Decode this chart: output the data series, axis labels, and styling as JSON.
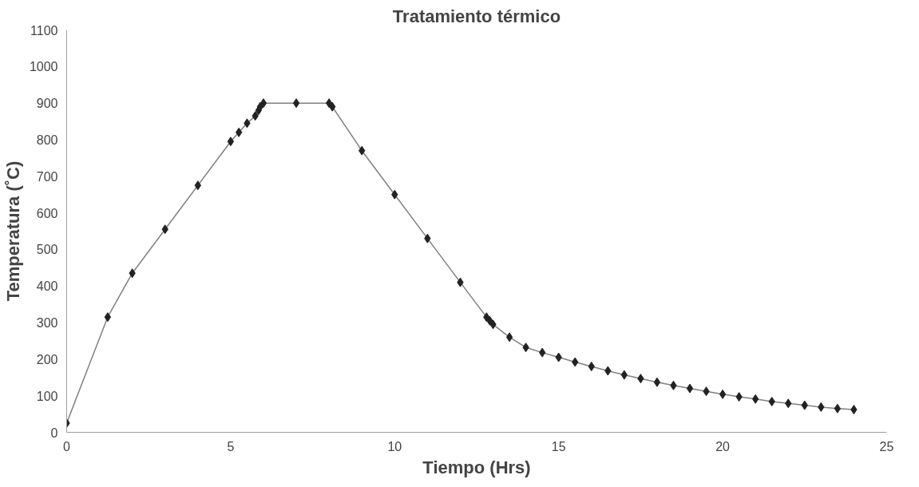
{
  "chart_data": {
    "type": "line",
    "title": "Tratamiento térmico",
    "xlabel": "Tiempo (Hrs)",
    "ylabel": "Temperatura (˚C)",
    "x": [
      0,
      1.25,
      2,
      3,
      4,
      5,
      5.25,
      5.5,
      5.75,
      5.85,
      5.9,
      6,
      7,
      8,
      8.1,
      9,
      10,
      11,
      12,
      12.8,
      12.9,
      13,
      13.5,
      14,
      14.5,
      15,
      15.5,
      16,
      16.5,
      17,
      17.5,
      18,
      18.5,
      19,
      19.5,
      20,
      20.5,
      21,
      21.5,
      22,
      22.5,
      23,
      23.5,
      24
    ],
    "series": [
      {
        "color": "#808080",
        "values": [
          25,
          315,
          435,
          555,
          675,
          795,
          820,
          845,
          865,
          880,
          890,
          900,
          900,
          900,
          890,
          770,
          650,
          530,
          410,
          315,
          305,
          295,
          260,
          232,
          218,
          205,
          192,
          180,
          168,
          157,
          147,
          137,
          128,
          120,
          112,
          104,
          97,
          91,
          84,
          79,
          74,
          69,
          65,
          62
        ]
      }
    ],
    "xlim": [
      0,
      25
    ],
    "xticks": [
      0,
      5,
      10,
      15,
      20,
      25
    ],
    "ylim": [
      0,
      1100
    ],
    "yticks": [
      0,
      100,
      200,
      300,
      400,
      500,
      600,
      700,
      800,
      900,
      1000,
      1100
    ],
    "grid": false,
    "marker": "diamond",
    "line_style": "solid"
  }
}
